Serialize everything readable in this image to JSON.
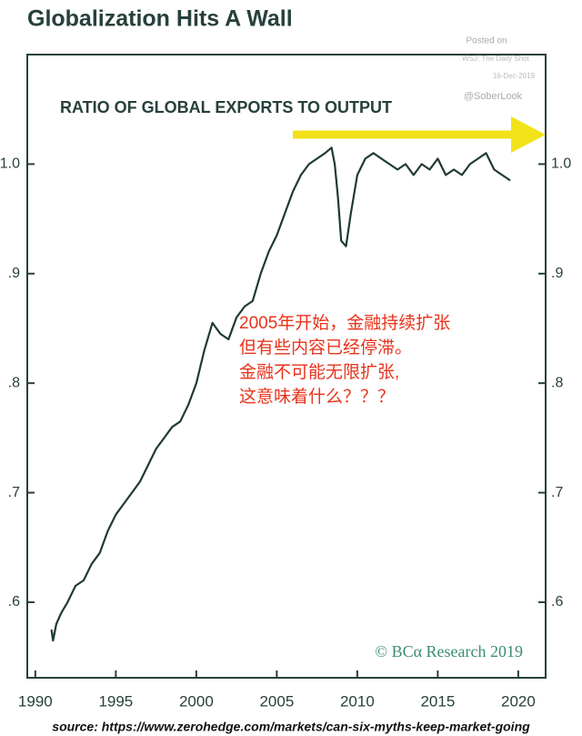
{
  "chart_data": {
    "type": "line",
    "title": "Globalization Hits A Wall",
    "subtitle": "RATIO OF GLOBAL EXPORTS TO OUTPUT",
    "watermark": [
      "Posted on",
      "WSJ: The Daily Shot",
      "16-Dec-2019",
      "@SoberLook"
    ],
    "annotation": [
      "2005年开始，金融持续扩张",
      "但有些内容已经停滞。",
      "金融不可能无限扩张,",
      "这意味着什么？？？"
    ],
    "credit": "© BCα Research 2019",
    "source": "source: https://www.zerohedge.com/markets/can-six-myths-keep-market-going",
    "color": "#1f3a35",
    "x": [
      1991.0,
      1991.1,
      1991.3,
      1991.6,
      1992.0,
      1992.5,
      1993.0,
      1993.5,
      1994.0,
      1994.5,
      1995.0,
      1995.5,
      1996.0,
      1996.5,
      1997.0,
      1997.5,
      1998.0,
      1998.5,
      1999.0,
      1999.5,
      2000.0,
      2000.5,
      2001.0,
      2001.5,
      2002.0,
      2002.5,
      2003.0,
      2003.5,
      2004.0,
      2004.5,
      2005.0,
      2005.5,
      2006.0,
      2006.5,
      2007.0,
      2007.5,
      2008.0,
      2008.4,
      2008.6,
      2008.8,
      2009.0,
      2009.3,
      2009.6,
      2010.0,
      2010.5,
      2011.0,
      2011.5,
      2012.0,
      2012.5,
      2013.0,
      2013.5,
      2014.0,
      2014.5,
      2015.0,
      2015.5,
      2016.0,
      2016.5,
      2017.0,
      2017.5,
      2018.0,
      2018.5,
      2019.0,
      2019.5
    ],
    "values": [
      0.575,
      0.565,
      0.58,
      0.59,
      0.6,
      0.615,
      0.62,
      0.635,
      0.645,
      0.665,
      0.68,
      0.69,
      0.7,
      0.71,
      0.725,
      0.74,
      0.75,
      0.76,
      0.765,
      0.78,
      0.8,
      0.83,
      0.855,
      0.845,
      0.84,
      0.86,
      0.87,
      0.875,
      0.9,
      0.92,
      0.935,
      0.955,
      0.975,
      0.99,
      1.0,
      1.005,
      1.01,
      1.015,
      1.0,
      0.97,
      0.93,
      0.925,
      0.955,
      0.99,
      1.005,
      1.01,
      1.005,
      1.0,
      0.995,
      1.0,
      0.99,
      1.0,
      0.995,
      1.005,
      0.99,
      0.995,
      0.99,
      1.0,
      1.005,
      1.01,
      0.995,
      0.99,
      0.985
    ],
    "xlim": [
      1989.5,
      2021.7
    ],
    "ylim": [
      0.531,
      1.1
    ],
    "xticks": [
      1990,
      1995,
      2000,
      2005,
      2010,
      2015,
      2020
    ],
    "yticks": [
      {
        "value": 0.6,
        "label": ".6"
      },
      {
        "value": 0.7,
        "label": ".7"
      },
      {
        "value": 0.8,
        "label": ".8"
      },
      {
        "value": 0.9,
        "label": ".9"
      },
      {
        "value": 1.0,
        "label": "1.0"
      }
    ]
  }
}
